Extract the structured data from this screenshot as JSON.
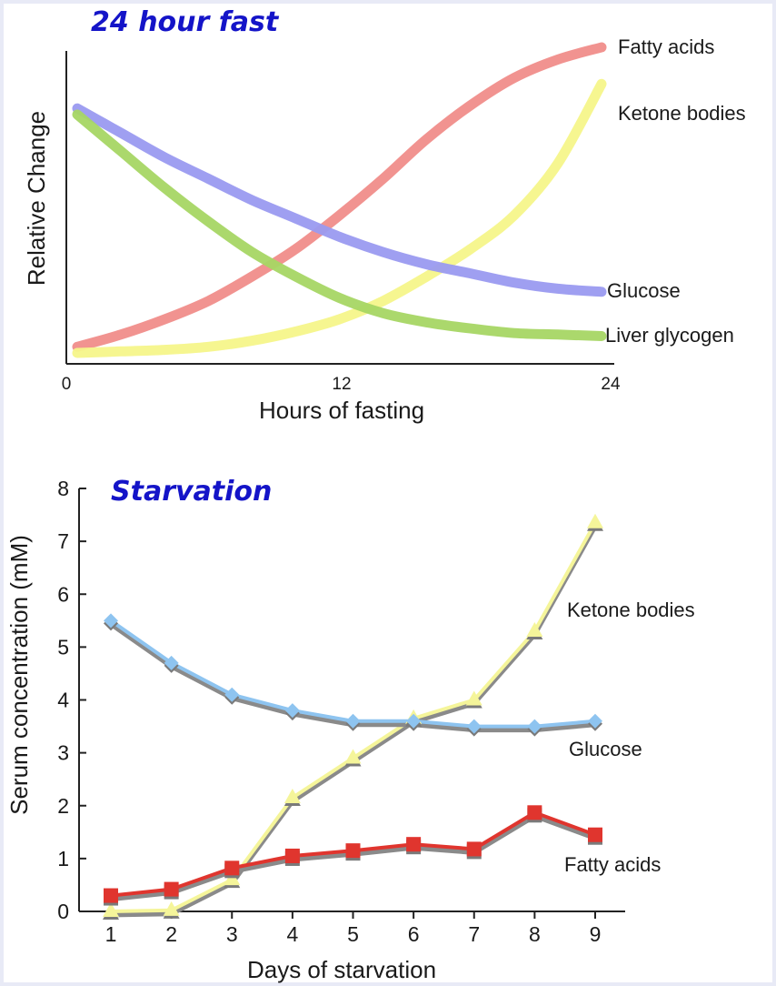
{
  "chart_data": [
    {
      "type": "line",
      "title": "24 hour fast",
      "xlabel": "Hours of fasting",
      "ylabel": "Relative Change",
      "xlim": [
        0,
        24
      ],
      "x_ticks": [
        "0",
        "12",
        "24"
      ],
      "y_ticks": [],
      "grid": false,
      "legend": "labels at line ends (right)",
      "x": [
        0,
        2,
        4,
        6,
        8,
        10,
        12,
        14,
        16,
        18,
        20,
        22,
        24
      ],
      "series": [
        {
          "name": "Fatty acids",
          "color": "#f08d8a",
          "values": [
            0.02,
            0.06,
            0.11,
            0.17,
            0.25,
            0.34,
            0.45,
            0.57,
            0.7,
            0.81,
            0.9,
            0.96,
            1.0
          ]
        },
        {
          "name": "Ketone bodies",
          "color": "#f5f58a",
          "values": [
            0.0,
            0.005,
            0.01,
            0.02,
            0.04,
            0.07,
            0.11,
            0.17,
            0.25,
            0.34,
            0.45,
            0.62,
            0.88
          ]
        },
        {
          "name": "Glucose",
          "color": "#9a9af0",
          "values": [
            0.8,
            0.72,
            0.64,
            0.57,
            0.5,
            0.44,
            0.38,
            0.33,
            0.29,
            0.26,
            0.23,
            0.21,
            0.2
          ]
        },
        {
          "name": "Liver glycogen",
          "color": "#a6d664",
          "values": [
            0.78,
            0.66,
            0.54,
            0.43,
            0.33,
            0.25,
            0.18,
            0.13,
            0.1,
            0.08,
            0.065,
            0.06,
            0.055
          ]
        }
      ]
    },
    {
      "type": "line",
      "title": "Starvation",
      "xlabel": "Days of starvation",
      "ylabel": "Serum concentration (mM)",
      "ylim": [
        0,
        8
      ],
      "x": [
        1,
        2,
        3,
        4,
        5,
        6,
        7,
        8,
        9
      ],
      "y_ticks": [
        0,
        1,
        2,
        3,
        4,
        5,
        6,
        7,
        8
      ],
      "grid": false,
      "legend": "labels beside lines (right)",
      "series": [
        {
          "name": "Ketone bodies",
          "color": "#f5f59a",
          "marker": "triangle",
          "values": [
            0.0,
            0.02,
            0.6,
            2.15,
            2.9,
            3.65,
            4.0,
            5.3,
            7.35
          ]
        },
        {
          "name": "Glucose",
          "color": "#8ec4f0",
          "marker": "diamond",
          "values": [
            5.5,
            4.7,
            4.1,
            3.8,
            3.6,
            3.6,
            3.5,
            3.5,
            3.6
          ]
        },
        {
          "name": "Fatty acids",
          "color": "#e0352e",
          "marker": "square",
          "values": [
            0.3,
            0.42,
            0.82,
            1.05,
            1.15,
            1.27,
            1.18,
            1.87,
            1.45
          ]
        }
      ]
    }
  ]
}
